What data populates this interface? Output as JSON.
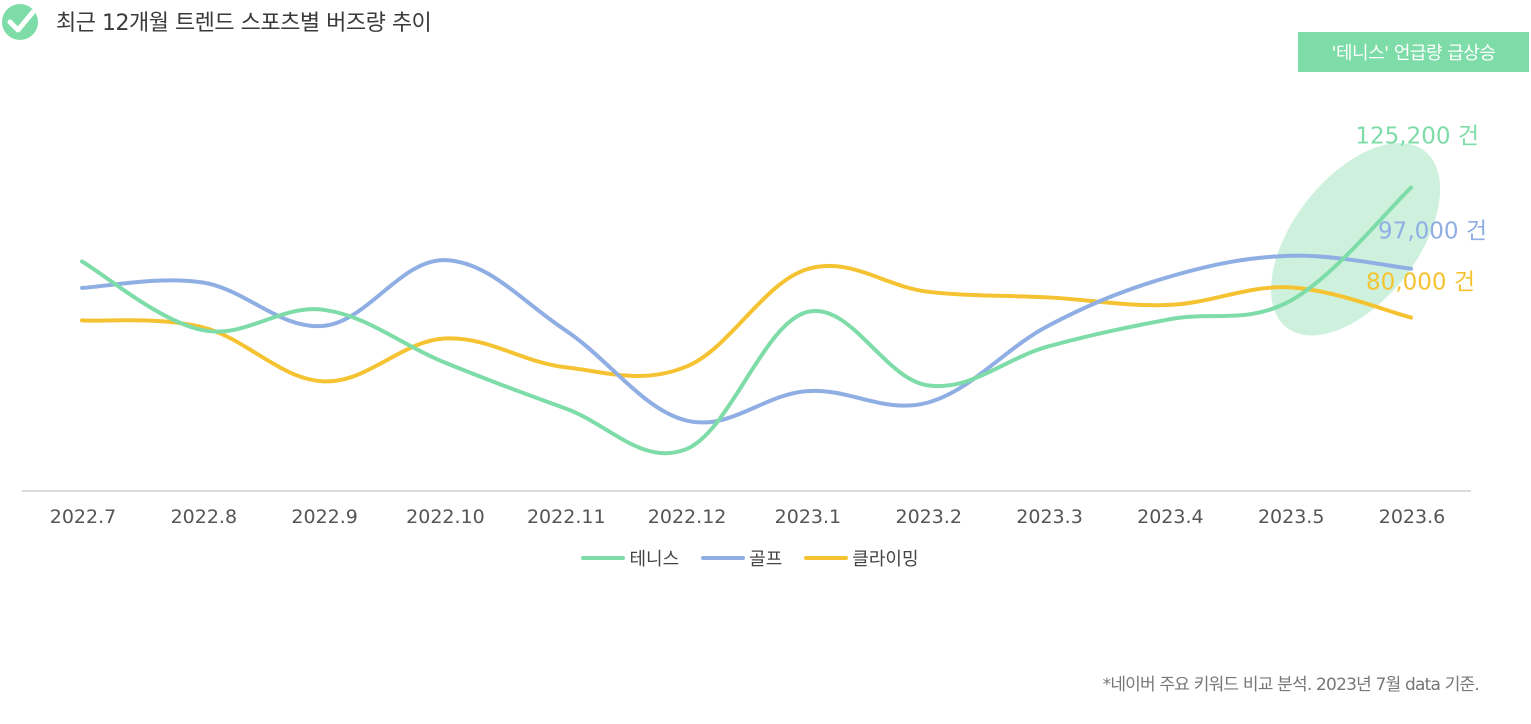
{
  "header": {
    "title": "최근 12개월 트렌드 스포츠별 버즈량 추이"
  },
  "badge": {
    "text": "'테니스' 언급량 급상승"
  },
  "footnote": "*네이버 주요 키워드 비교 분석. 2023년 7월 data 기준.",
  "colors": {
    "tennis": "#7ddca8",
    "golf": "#8faee3",
    "climbing": "#f5c332",
    "highlight": "#c8efd9",
    "axis": "#cfcfcf"
  },
  "chart_data": {
    "type": "line",
    "categories": [
      "2022.7",
      "2022.8",
      "2022.9",
      "2022.10",
      "2022.11",
      "2022.12",
      "2023.1",
      "2023.2",
      "2023.3",
      "2023.4",
      "2023.5",
      "2023.6"
    ],
    "series": [
      {
        "key": "tennis",
        "name": "테니스",
        "values": [
          99500,
          75600,
          82700,
          64400,
          48400,
          34200,
          81900,
          56400,
          70000,
          79400,
          85800,
          125200
        ],
        "end_label": "125,200 건"
      },
      {
        "key": "golf",
        "name": "골프",
        "values": [
          90300,
          92200,
          77100,
          100000,
          75600,
          44200,
          54400,
          50400,
          77200,
          94200,
          101500,
          97000
        ],
        "end_label": "97,000 건"
      },
      {
        "key": "climbing",
        "name": "클라이밍",
        "values": [
          79000,
          76600,
          57800,
          72700,
          62700,
          62900,
          96800,
          89000,
          87000,
          84400,
          90500,
          80000
        ],
        "end_label": "80,000 건"
      }
    ],
    "ylim": [
      20000,
      155000
    ],
    "xlabel": "",
    "ylabel": "",
    "grid": false,
    "legend": "bottom-center"
  }
}
